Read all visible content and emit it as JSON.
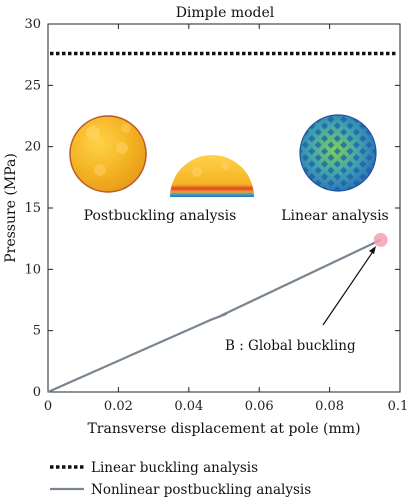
{
  "chart_data": {
    "type": "line",
    "title": "Dimple model",
    "xlabel": "Transverse displacement at pole (mm)",
    "ylabel": "Pressure (MPa)",
    "xlim": [
      0,
      0.1
    ],
    "ylim": [
      0,
      30
    ],
    "x_ticks": [
      "0",
      "0.02",
      "0.04",
      "0.06",
      "0.08",
      "0.1"
    ],
    "y_ticks": [
      "0",
      "5",
      "10",
      "15",
      "20",
      "25",
      "30"
    ],
    "grid": false,
    "legend_position": "bottom",
    "series": [
      {
        "name": "Linear buckling analysis",
        "style": "dotted",
        "color": "#111111",
        "x": [
          0,
          0.1
        ],
        "y": [
          27.6,
          27.6
        ]
      },
      {
        "name": "Nonlinear postbuckling analysis",
        "style": "solid",
        "color": "#7a8590",
        "x": [
          0,
          0.046,
          0.0505,
          0.049,
          0.0945
        ],
        "y": [
          0,
          5.85,
          6.35,
          6.2,
          12.4
        ]
      }
    ],
    "annotations": [
      {
        "text": "B : Global buckling",
        "x": 0.0945,
        "y": 12.4
      },
      {
        "text": "Postbuckling analysis"
      },
      {
        "text": "Linear analysis"
      }
    ],
    "colors": {
      "marker": "#f2a0b0",
      "sphere_orange": "#f4b322",
      "sphere_rim": "#b85a2a",
      "mesh_blue": "#2a7fc0",
      "mesh_green": "#7fd05a"
    }
  }
}
